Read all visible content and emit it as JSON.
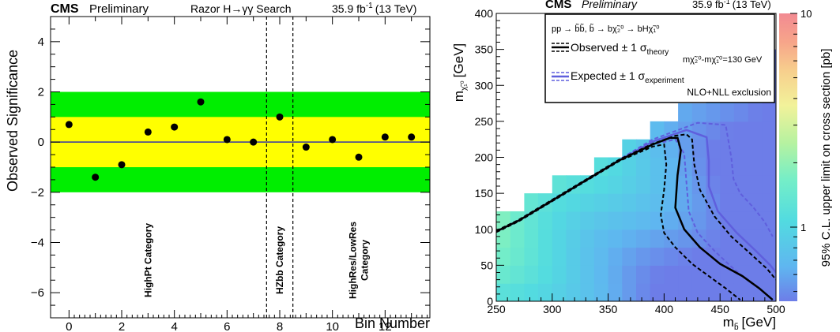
{
  "chart_data": [
    {
      "type": "scatter",
      "header": {
        "experiment": "CMS",
        "status": "Preliminary",
        "analysis": "Razor H→γγ Search",
        "lumi": "35.9 fb",
        "lumi_sup": "-1",
        "energy": "(13 TeV)"
      },
      "xlabel": "Bin Number",
      "ylabel": "Observed Significance",
      "xlim": [
        -0.7,
        13.7
      ],
      "ylim": [
        -7,
        5
      ],
      "xticks": [
        0,
        2,
        4,
        6,
        8,
        10,
        12
      ],
      "yticks": [
        -6,
        -4,
        -2,
        0,
        2,
        4
      ],
      "ytick_labels": [
        "−6",
        "−4",
        "−2",
        "0",
        "2",
        "4"
      ],
      "bands": [
        {
          "name": "±2σ",
          "low": -2,
          "high": 2,
          "color": "#00ee00"
        },
        {
          "name": "±1σ",
          "low": -1,
          "high": 1,
          "color": "#ffff00"
        }
      ],
      "zero_line_color": "#3333aa",
      "category_dividers": [
        7.5,
        8.5
      ],
      "category_labels": [
        {
          "lines": [
            "HighPt Category"
          ],
          "x": 3
        },
        {
          "lines": [
            "HZbb Category"
          ],
          "x": 8
        },
        {
          "lines": [
            "HighRes/LowRes",
            "Category"
          ],
          "x": 11
        }
      ],
      "points": {
        "x": [
          0,
          1,
          2,
          3,
          4,
          5,
          6,
          7,
          8,
          9,
          10,
          11,
          12,
          13
        ],
        "y": [
          0.7,
          -1.4,
          -0.9,
          0.4,
          0.6,
          1.6,
          0.1,
          0.0,
          1.0,
          -0.2,
          0.1,
          -0.6,
          0.2,
          0.2
        ]
      }
    },
    {
      "type": "heatmap",
      "header": {
        "experiment": "CMS",
        "status": "Preliminary",
        "lumi": "35.9 fb",
        "lumi_sup": "-1",
        "energy": "(13 TeV)"
      },
      "xlabel": "m",
      "xlabel_sub": "b̃",
      "xlabel_unit": "[GeV]",
      "ylabel": "m",
      "ylabel_sub": "χ̃₁⁰",
      "ylabel_unit": "[GeV]",
      "zlabel": "95% C.L. upper limit on cross section [pb]",
      "xlim": [
        250,
        500
      ],
      "ylim": [
        0,
        400
      ],
      "xticks": [
        250,
        300,
        350,
        400,
        450,
        500
      ],
      "yticks": [
        0,
        50,
        100,
        150,
        200,
        250,
        300,
        350,
        400
      ],
      "z_scale": "log",
      "zlim": [
        0.45,
        10
      ],
      "zticks": [
        1,
        10
      ],
      "legend": {
        "process": "pp → b̃b̃, b̃ → bχ̃₂⁰ →  bHχ̃₁⁰",
        "observed": "Observed ± 1 σ",
        "observed_sub": "theory",
        "expected": "Expected ± 1 σ",
        "expected_sub": "experiment",
        "mass_splitting": "mχ̃₂⁰-mχ̃₁⁰=130 GeV",
        "exclusion": "NLO+NLL exclusion"
      },
      "colors": {
        "observed": "#000000",
        "expected": "#5f5fdd"
      },
      "curves": {
        "observed": {
          "x": [
            250,
            270,
            300,
            330,
            360,
            390,
            405,
            412,
            415,
            412,
            410,
            418,
            432,
            450,
            470,
            485,
            497
          ],
          "y": [
            97,
            112,
            140,
            168,
            196,
            218,
            227,
            227,
            210,
            175,
            130,
            100,
            75,
            52,
            35,
            18,
            2
          ]
        },
        "observed_up": {
          "x": [
            250,
            270,
            300,
            330,
            360,
            390,
            410,
            420,
            425,
            427,
            432,
            445,
            460,
            478,
            492,
            500
          ],
          "y": [
            98,
            113,
            141,
            169,
            197,
            219,
            230,
            232,
            225,
            190,
            155,
            118,
            90,
            65,
            45,
            30
          ]
        },
        "observed_down": {
          "x": [
            250,
            270,
            300,
            330,
            360,
            390,
            400,
            402,
            400,
            397,
            400,
            410,
            425,
            440,
            455,
            468
          ],
          "y": [
            96,
            111,
            139,
            167,
            195,
            215,
            218,
            190,
            155,
            120,
            95,
            75,
            52,
            35,
            18,
            2
          ]
        },
        "expected": {
          "x": [
            250,
            270,
            300,
            330,
            360,
            390,
            420,
            438,
            440,
            440,
            448,
            465,
            482,
            495,
            500
          ],
          "y": [
            97,
            112,
            140,
            168,
            196,
            222,
            238,
            228,
            195,
            160,
            125,
            95,
            70,
            50,
            40
          ]
        },
        "expected_up": {
          "x": [
            250,
            270,
            300,
            330,
            360,
            390,
            430,
            455,
            460,
            462,
            468,
            480,
            490,
            497
          ],
          "y": [
            98,
            113,
            141,
            169,
            197,
            225,
            248,
            245,
            200,
            170,
            150,
            130,
            110,
            90
          ]
        },
        "expected_down": {
          "x": [
            250,
            270,
            300,
            330,
            360,
            390,
            410,
            418,
            420,
            422,
            430,
            445,
            460,
            478
          ],
          "y": [
            96,
            111,
            139,
            167,
            195,
            218,
            225,
            205,
            165,
            125,
            95,
            70,
            48,
            25
          ]
        }
      }
    }
  ]
}
